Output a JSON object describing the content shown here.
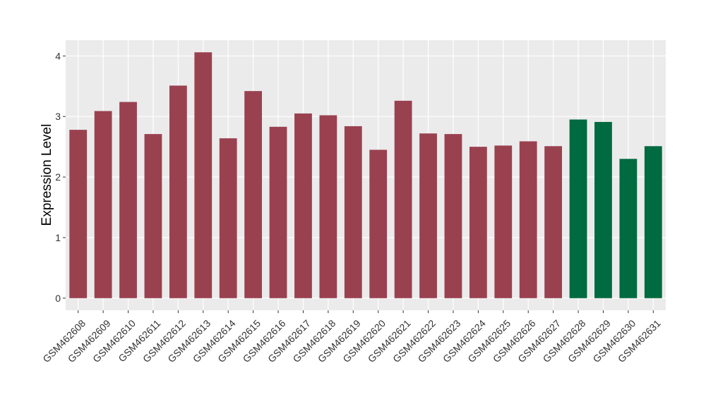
{
  "chart_data": {
    "type": "bar",
    "y_label": "Expression Level",
    "categories": [
      "GSM462608",
      "GSM462609",
      "GSM462610",
      "GSM462611",
      "GSM462612",
      "GSM462613",
      "GSM462614",
      "GSM462615",
      "GSM462616",
      "GSM462617",
      "GSM462618",
      "GSM462619",
      "GSM462620",
      "GSM462621",
      "GSM462622",
      "GSM462623",
      "GSM462624",
      "GSM462625",
      "GSM462626",
      "GSM462627",
      "GSM462628",
      "GSM462629",
      "GSM462630",
      "GSM462631"
    ],
    "values": [
      2.78,
      3.09,
      3.24,
      2.71,
      3.51,
      4.06,
      2.64,
      3.42,
      2.83,
      3.05,
      3.02,
      2.84,
      2.45,
      3.26,
      2.72,
      2.71,
      2.5,
      2.52,
      2.59,
      2.51,
      2.95,
      2.91,
      2.3,
      2.51
    ],
    "colors": [
      "#9a4150",
      "#9a4150",
      "#9a4150",
      "#9a4150",
      "#9a4150",
      "#9a4150",
      "#9a4150",
      "#9a4150",
      "#9a4150",
      "#9a4150",
      "#9a4150",
      "#9a4150",
      "#9a4150",
      "#9a4150",
      "#9a4150",
      "#9a4150",
      "#9a4150",
      "#9a4150",
      "#9a4150",
      "#9a4150",
      "#006a40",
      "#006a40",
      "#006a40",
      "#006a40"
    ],
    "ylim": [
      -0.2,
      4.26
    ],
    "yticks": [
      0,
      1,
      2,
      3,
      4
    ],
    "grid": true
  }
}
